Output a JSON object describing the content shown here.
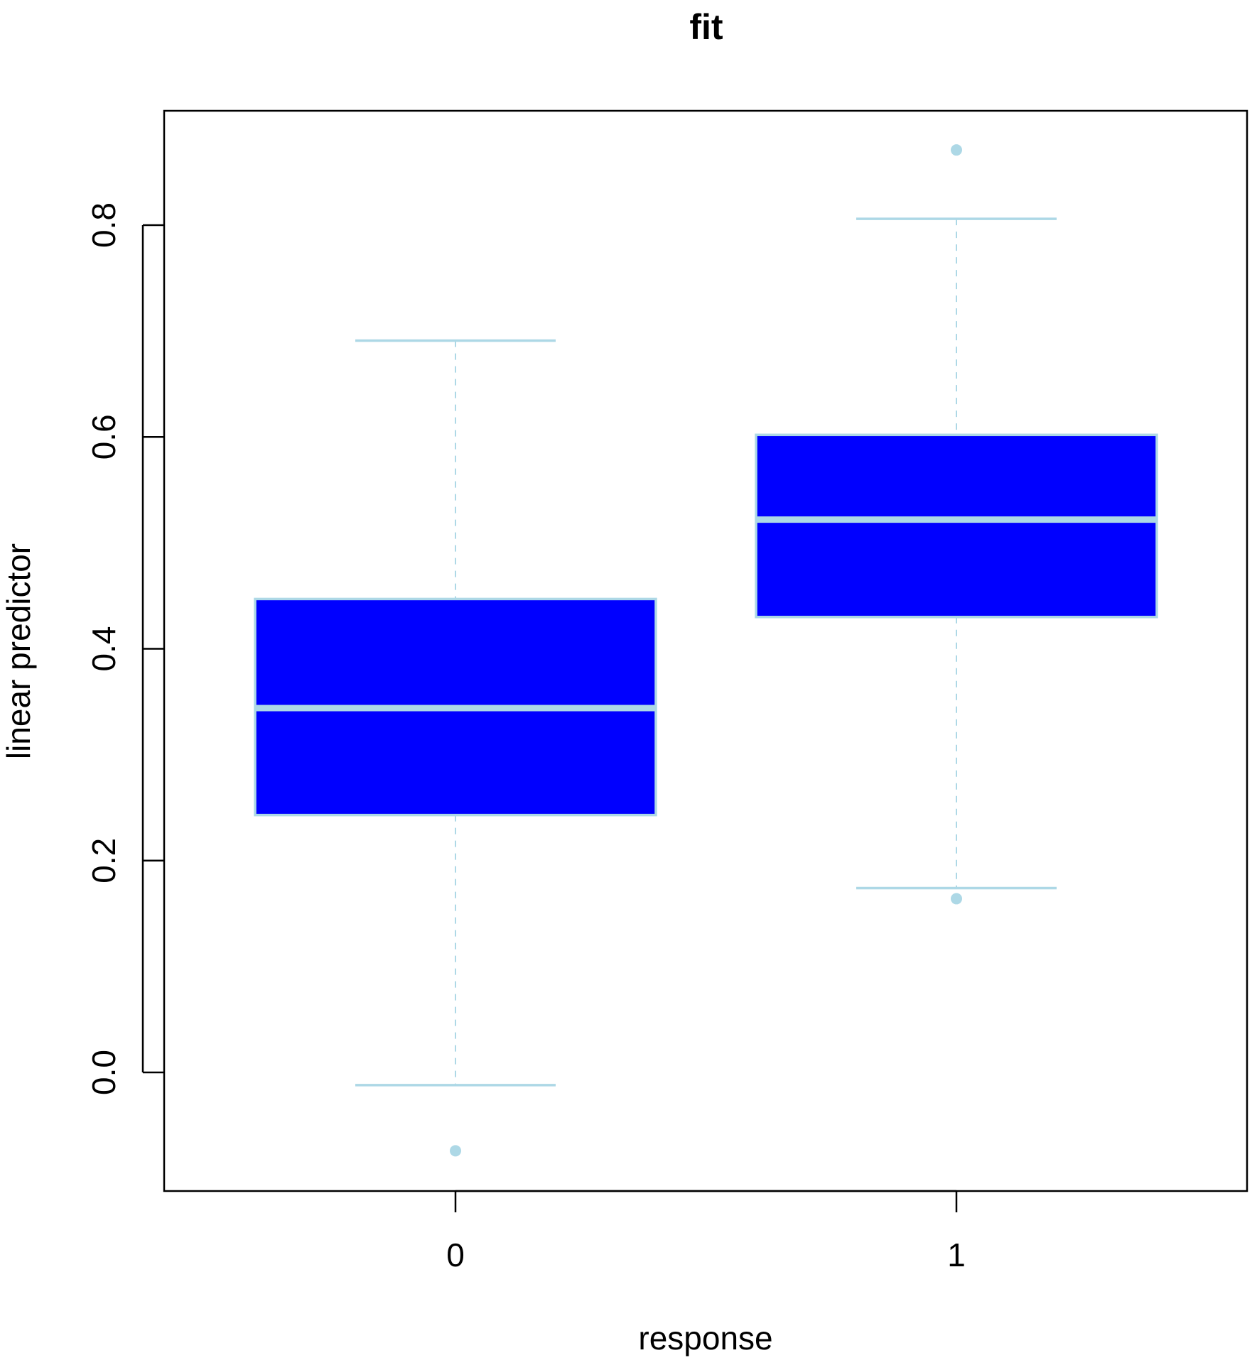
{
  "chart_data": {
    "type": "boxplot",
    "title": "fit",
    "xlabel": "response",
    "ylabel": "linear predictor",
    "categories": [
      "0",
      "1"
    ],
    "ylim": [
      -0.112,
      0.908
    ],
    "yticks": [
      "0.0",
      "0.2",
      "0.4",
      "0.6",
      "0.8"
    ],
    "box_color": "#0000ff",
    "line_color": "#add8e6",
    "frame_color": "#000000",
    "boxes": [
      {
        "category": "0",
        "whisker_low": -0.012,
        "q1": 0.243,
        "median": 0.344,
        "q3": 0.447,
        "whisker_high": 0.691,
        "outliers": [
          -0.074
        ]
      },
      {
        "category": "1",
        "whisker_low": 0.174,
        "q1": 0.43,
        "median": 0.522,
        "q3": 0.602,
        "whisker_high": 0.806,
        "outliers": [
          0.871,
          0.164
        ]
      }
    ]
  }
}
